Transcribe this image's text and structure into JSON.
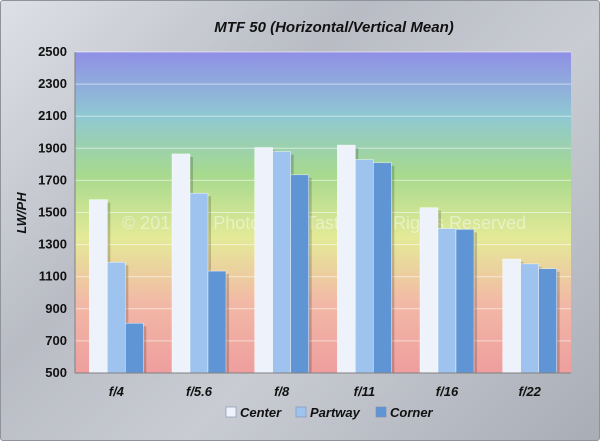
{
  "chart_data": {
    "type": "bar",
    "title": "MTF 50 (Horizontal/Vertical Mean)",
    "xlabel": "",
    "ylabel": "LW/PH",
    "ylim": [
      500,
      2500
    ],
    "yticks": [
      500,
      700,
      900,
      1100,
      1300,
      1500,
      1700,
      1900,
      2100,
      2300,
      2500
    ],
    "categories": [
      "f/4",
      "f/5.6",
      "f/8",
      "f/11",
      "f/16",
      "f/22"
    ],
    "series": [
      {
        "name": "Center",
        "color": "#eef2fb",
        "values": [
          1580,
          1865,
          1905,
          1920,
          1530,
          1210
        ]
      },
      {
        "name": "Partway",
        "color": "#9ec3ef",
        "values": [
          1190,
          1620,
          1880,
          1830,
          1400,
          1180
        ]
      },
      {
        "name": "Corner",
        "color": "#5f95d4",
        "values": [
          810,
          1135,
          1735,
          1810,
          1395,
          1150
        ]
      }
    ],
    "grid": true,
    "legend": "bottom",
    "watermark": "© 2013 EF Photo, Eric Tastad, All Rights Reserved"
  }
}
